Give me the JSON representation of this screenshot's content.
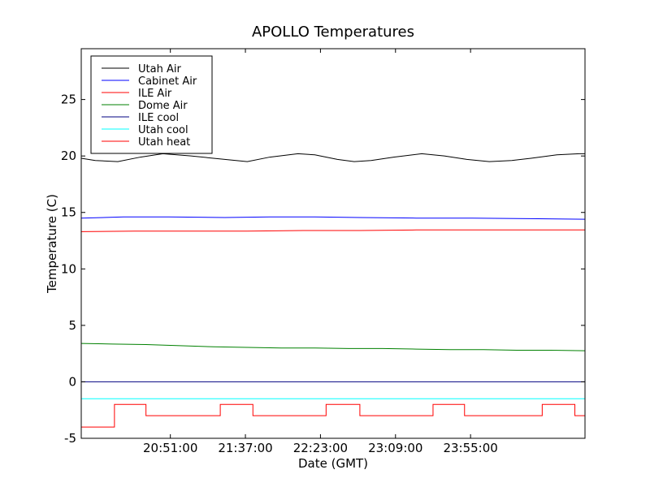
{
  "chart_data": {
    "type": "line",
    "title": "APOLLO Temperatures",
    "xlabel": "Date (GMT)",
    "ylabel": "Temperature (C)",
    "ylim": [
      -5,
      29.5
    ],
    "yticks": [
      -5,
      0,
      5,
      10,
      15,
      20,
      25
    ],
    "xlim": [
      -0.475,
      4.0
    ],
    "xtick_positions": [
      0.3167,
      0.9833,
      1.65,
      2.3167,
      2.9833
    ],
    "xtick_labels": [
      "20:51:00",
      "21:37:00",
      "22:23:00",
      "23:09:00",
      "23:55:00"
    ],
    "legend_location": "upper-left",
    "series": [
      {
        "name": "Utah Air",
        "color": "#000000",
        "style": "line",
        "x": [
          -0.475,
          -0.35,
          -0.15,
          0.05,
          0.25,
          0.5,
          0.7,
          0.9,
          1.0,
          1.2,
          1.45,
          1.6,
          1.8,
          1.95,
          2.1,
          2.3,
          2.55,
          2.75,
          2.95,
          3.15,
          3.35,
          3.52,
          3.75,
          3.95,
          4.0
        ],
        "values": [
          19.8,
          19.6,
          19.5,
          19.9,
          20.2,
          20.0,
          19.8,
          19.6,
          19.5,
          19.9,
          20.2,
          20.1,
          19.7,
          19.5,
          19.6,
          19.9,
          20.2,
          20.0,
          19.7,
          19.5,
          19.6,
          19.8,
          20.1,
          20.2,
          20.2
        ]
      },
      {
        "name": "Cabinet Air",
        "color": "#0000ff",
        "style": "line",
        "x": [
          -0.475,
          -0.1,
          0.3,
          0.8,
          1.2,
          1.6,
          2.0,
          2.5,
          3.0,
          3.5,
          4.0
        ],
        "values": [
          14.5,
          14.6,
          14.6,
          14.55,
          14.6,
          14.6,
          14.55,
          14.5,
          14.5,
          14.45,
          14.4
        ]
      },
      {
        "name": "ILE Air",
        "color": "#ff0000",
        "style": "line",
        "x": [
          -0.475,
          0.0,
          0.5,
          1.0,
          1.5,
          2.0,
          2.5,
          3.0,
          3.5,
          4.0
        ],
        "values": [
          13.3,
          13.35,
          13.35,
          13.35,
          13.4,
          13.4,
          13.45,
          13.45,
          13.45,
          13.45
        ]
      },
      {
        "name": "Dome Air",
        "color": "#008000",
        "style": "line",
        "x": [
          -0.475,
          -0.2,
          0.1,
          0.4,
          0.7,
          1.0,
          1.3,
          1.6,
          1.9,
          2.2,
          2.5,
          2.8,
          3.1,
          3.4,
          3.7,
          4.0
        ],
        "values": [
          3.4,
          3.35,
          3.3,
          3.2,
          3.1,
          3.05,
          3.0,
          3.0,
          2.95,
          2.95,
          2.9,
          2.85,
          2.85,
          2.8,
          2.8,
          2.75
        ]
      },
      {
        "name": "ILE cool",
        "color": "#000080",
        "style": "line",
        "x": [
          -0.475,
          4.0
        ],
        "values": [
          0,
          0
        ]
      },
      {
        "name": "Utah cool",
        "color": "#00ffff",
        "style": "line",
        "x": [
          -0.475,
          4.0
        ],
        "values": [
          -1.5,
          -1.5
        ]
      },
      {
        "name": "Utah heat",
        "color": "#ff0000",
        "style": "step",
        "x": [
          -0.475,
          -0.18,
          -0.18,
          0.1,
          0.1,
          0.76,
          0.76,
          1.05,
          1.05,
          1.7,
          1.7,
          2.0,
          2.0,
          2.65,
          2.65,
          2.93,
          2.93,
          3.62,
          3.62,
          3.91,
          3.91,
          4.0
        ],
        "values": [
          -4,
          -4,
          -2,
          -2,
          -3,
          -3,
          -2,
          -2,
          -3,
          -3,
          -2,
          -2,
          -3,
          -3,
          -2,
          -2,
          -3,
          -3,
          -2,
          -2,
          -3,
          -3
        ]
      }
    ]
  }
}
